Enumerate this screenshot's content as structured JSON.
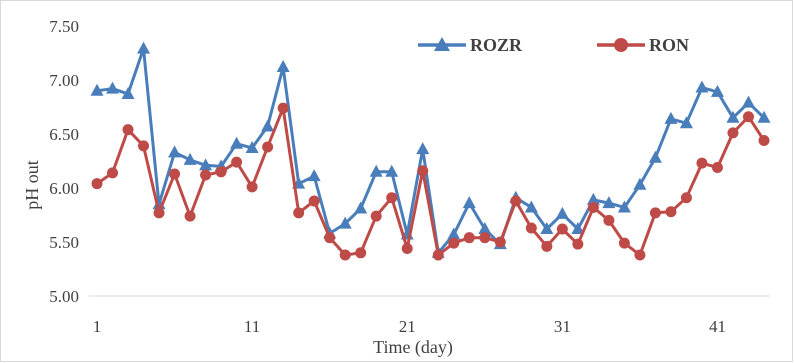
{
  "chart_data": {
    "type": "line",
    "title": "",
    "xlabel": "Time (day)",
    "ylabel": "pH out",
    "xlim": [
      1,
      44
    ],
    "ylim": [
      5.0,
      7.5
    ],
    "y_ticks": [
      "5.00",
      "5.50",
      "6.00",
      "6.50",
      "7.00",
      "7.50"
    ],
    "x_ticks": [
      "1",
      "11",
      "21",
      "31",
      "41"
    ],
    "x_tick_values": [
      1,
      11,
      21,
      31,
      41
    ],
    "grid": false,
    "legend_position": "top-right",
    "x": [
      1,
      2,
      3,
      4,
      5,
      6,
      7,
      8,
      9,
      10,
      11,
      12,
      13,
      14,
      15,
      16,
      17,
      18,
      19,
      20,
      21,
      22,
      23,
      24,
      25,
      26,
      27,
      28,
      29,
      30,
      31,
      32,
      33,
      34,
      35,
      36,
      37,
      38,
      39,
      40,
      41,
      42,
      43,
      44
    ],
    "series": [
      {
        "name": "ROZR",
        "color": "#4a7ebb",
        "marker": "triangle",
        "values": [
          6.9,
          6.92,
          6.87,
          7.29,
          5.85,
          6.33,
          6.26,
          6.21,
          6.2,
          6.41,
          6.37,
          6.57,
          7.12,
          6.04,
          6.11,
          5.58,
          5.67,
          5.81,
          6.15,
          6.15,
          5.57,
          6.36,
          5.4,
          5.57,
          5.86,
          5.62,
          5.48,
          5.91,
          5.82,
          5.62,
          5.76,
          5.62,
          5.89,
          5.86,
          5.82,
          6.03,
          6.28,
          6.64,
          6.6,
          6.93,
          6.89,
          6.65,
          6.79,
          6.65
        ]
      },
      {
        "name": "RON",
        "color": "#be4b48",
        "marker": "circle",
        "values": [
          6.04,
          6.14,
          6.54,
          6.39,
          5.77,
          6.13,
          5.74,
          6.12,
          6.15,
          6.24,
          6.01,
          6.38,
          6.74,
          5.77,
          5.88,
          5.54,
          5.38,
          5.4,
          5.74,
          5.91,
          5.44,
          6.16,
          5.38,
          5.49,
          5.54,
          5.54,
          5.5,
          5.88,
          5.63,
          5.46,
          5.62,
          5.48,
          5.82,
          5.7,
          5.49,
          5.38,
          5.77,
          5.78,
          5.91,
          6.23,
          6.19,
          6.51,
          6.66,
          6.44
        ]
      }
    ]
  }
}
